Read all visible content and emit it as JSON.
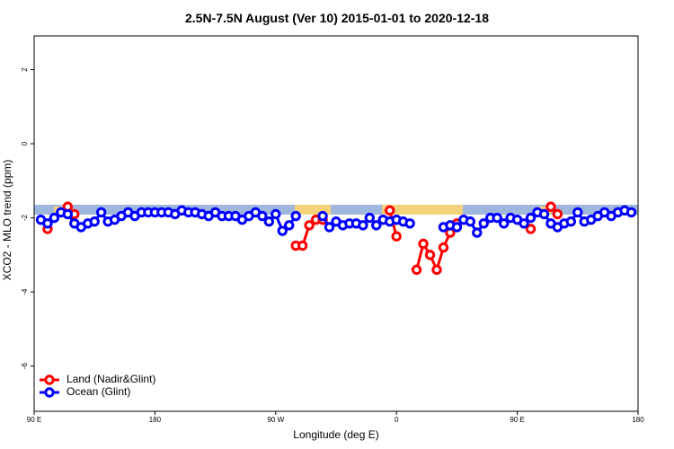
{
  "chart_data": {
    "type": "line",
    "title": "2.5N-7.5N August (Ver 10)   2015-01-01 to 2020-12-18",
    "x_label": "Longitude (deg E)",
    "y_label": "XCO2 - MLO trend (ppm)",
    "xlim": [
      90,
      540
    ],
    "ylim": [
      -7.22,
      2.91
    ],
    "xticks": [
      {
        "value": 90,
        "label": "90 E"
      },
      180,
      {
        "value": 270,
        "label": "90 W"
      },
      {
        "value": 360,
        "label": "0"
      },
      {
        "value": 450,
        "label": "90 E"
      },
      {
        "value": 540,
        "label": "180"
      }
    ],
    "yticks": [
      -6,
      -4,
      -2,
      0,
      2
    ],
    "legend": "bottom-left",
    "x": [
      95,
      100,
      105,
      110,
      115,
      120,
      125,
      130,
      135,
      140,
      145,
      150,
      155,
      160,
      165,
      170,
      175,
      180,
      185,
      190,
      195,
      200,
      205,
      210,
      215,
      220,
      225,
      230,
      235,
      240,
      245,
      250,
      255,
      260,
      265,
      270,
      275,
      280,
      285,
      290,
      295,
      300,
      305,
      310,
      315,
      320,
      325,
      330,
      335,
      340,
      345,
      350,
      355,
      360,
      365,
      370,
      375,
      380,
      385,
      390,
      395,
      400,
      405,
      410,
      415,
      420,
      425,
      430,
      435,
      440,
      445,
      450,
      455,
      460,
      465,
      470,
      475,
      480,
      485,
      490,
      495,
      500,
      505,
      510,
      515,
      520,
      525,
      530,
      535
    ],
    "series": [
      {
        "name": "Land (Nadir&Glint)",
        "color": "#ff0000",
        "values": [
          null,
          -2.3,
          null,
          null,
          -1.7,
          -1.9,
          null,
          null,
          null,
          null,
          null,
          null,
          null,
          null,
          null,
          null,
          null,
          null,
          null,
          null,
          null,
          null,
          null,
          null,
          null,
          null,
          null,
          null,
          null,
          null,
          null,
          null,
          null,
          null,
          null,
          null,
          null,
          null,
          -2.75,
          -2.75,
          -2.2,
          -2.05,
          -2.05,
          null,
          null,
          null,
          null,
          null,
          null,
          null,
          null,
          null,
          -1.8,
          -2.5,
          null,
          null,
          -3.4,
          -2.7,
          -3.0,
          -3.4,
          -2.8,
          -2.4,
          -2.15,
          null,
          null,
          null,
          null,
          null,
          null,
          null,
          null,
          null,
          null,
          -2.3,
          null,
          null,
          -1.7,
          -1.9,
          null,
          null,
          null,
          null,
          null,
          null,
          null,
          null,
          null,
          null,
          null
        ]
      },
      {
        "name": "Ocean (Glint)",
        "color": "#0000ff",
        "values": [
          -2.05,
          -2.15,
          -2.0,
          -1.85,
          -1.9,
          -2.15,
          -2.25,
          -2.15,
          -2.1,
          -1.85,
          -2.1,
          -2.05,
          -1.95,
          -1.85,
          -1.95,
          -1.85,
          -1.85,
          -1.85,
          -1.85,
          -1.85,
          -1.9,
          -1.8,
          -1.85,
          -1.85,
          -1.9,
          -1.95,
          -1.85,
          -1.95,
          -1.95,
          -1.95,
          -2.05,
          -1.95,
          -1.85,
          -1.95,
          -2.1,
          -1.9,
          -2.35,
          -2.2,
          -1.95,
          null,
          null,
          null,
          -1.95,
          -2.25,
          -2.1,
          -2.2,
          -2.15,
          -2.15,
          -2.2,
          -2.0,
          -2.2,
          -2.05,
          -2.1,
          -2.05,
          -2.1,
          -2.15,
          null,
          null,
          null,
          null,
          -2.25,
          -2.2,
          -2.25,
          -2.05,
          -2.1,
          -2.4,
          -2.15,
          -2.0,
          -2.0,
          -2.15,
          -2.0,
          -2.05,
          -2.15,
          -2.0,
          -1.85,
          -1.9,
          -2.15,
          -2.25,
          -2.15,
          -2.1,
          -1.85,
          -2.1,
          -2.05,
          -1.95,
          -1.85,
          -1.95,
          -1.85,
          -1.8,
          -1.85
        ]
      }
    ]
  }
}
